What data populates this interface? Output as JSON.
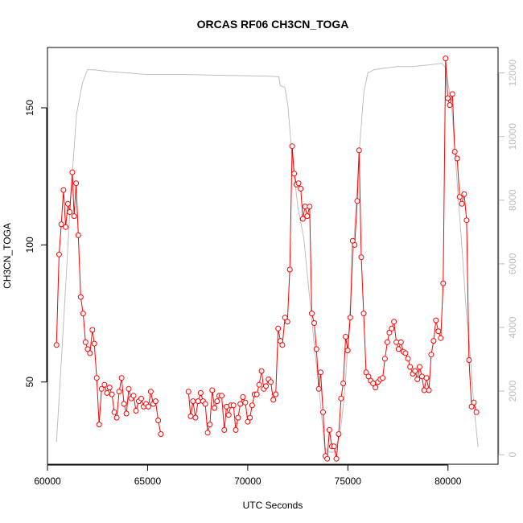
{
  "chart_data": {
    "type": "line",
    "title": "ORCAS RF06 CH3CN_TOGA",
    "xlabel": "UTC Seconds",
    "ylabel": "CH3CN_TOGA",
    "xlim": [
      60000,
      82500
    ],
    "ylim": [
      20,
      172
    ],
    "y2lim": [
      -300,
      12800
    ],
    "grid": false,
    "legend": "none",
    "x_ticks": [
      60000,
      65000,
      70000,
      75000,
      80000
    ],
    "y_ticks": [
      50,
      100,
      150
    ],
    "y2_ticks": [
      0,
      2000,
      4000,
      6000,
      8000,
      10000,
      12000
    ],
    "colors": {
      "primary": "#ff0000",
      "secondary": "#bebebe"
    },
    "series": [
      {
        "axis": "left",
        "style": "line-points",
        "color": "#ff0000",
        "segments": [
          [
            [
              60450,
              63.5
            ],
            [
              60580,
              96.5
            ],
            [
              60690,
              107.5
            ],
            [
              60800,
              120
            ],
            [
              60910,
              106.5
            ],
            [
              61020,
              115
            ],
            [
              61110,
              112
            ],
            [
              61240,
              126.5
            ],
            [
              61330,
              110.5
            ],
            [
              61430,
              122.5
            ],
            [
              61540,
              103.5
            ],
            [
              61660,
              81
            ],
            [
              61780,
              75
            ],
            [
              61900,
              64.5
            ],
            [
              62010,
              62
            ],
            [
              62120,
              60.5
            ],
            [
              62240,
              69
            ],
            [
              62340,
              64
            ],
            [
              62460,
              51.5
            ],
            [
              62580,
              34.5
            ],
            [
              62700,
              47.5
            ],
            [
              62850,
              49
            ],
            [
              62970,
              46
            ],
            [
              63100,
              48
            ],
            [
              63220,
              45.5
            ],
            [
              63340,
              39
            ],
            [
              63460,
              37
            ],
            [
              63580,
              46.5
            ],
            [
              63700,
              51.5
            ],
            [
              63820,
              42
            ],
            [
              63940,
              38.5
            ],
            [
              64060,
              47.5
            ],
            [
              64180,
              44
            ],
            [
              64300,
              45
            ],
            [
              64420,
              39.5
            ],
            [
              64560,
              43
            ],
            [
              64680,
              44
            ],
            [
              64800,
              41
            ],
            [
              64920,
              42
            ],
            [
              65040,
              41
            ],
            [
              65160,
              46.5
            ],
            [
              65280,
              42
            ],
            [
              65400,
              43
            ],
            [
              65530,
              36
            ],
            [
              65660,
              31
            ]
          ],
          [
            [
              67040,
              46.5
            ],
            [
              67150,
              37.5
            ],
            [
              67270,
              43
            ],
            [
              67390,
              37
            ],
            [
              67520,
              43
            ],
            [
              67650,
              46
            ],
            [
              67770,
              43
            ],
            [
              67880,
              42
            ],
            [
              68000,
              31.5
            ],
            [
              68110,
              34.5
            ],
            [
              68230,
              47
            ],
            [
              68340,
              40.5
            ],
            [
              68470,
              43
            ],
            [
              68580,
              45
            ],
            [
              68700,
              45
            ],
            [
              68830,
              32.5
            ],
            [
              68940,
              41
            ],
            [
              69050,
              38
            ],
            [
              69160,
              41.5
            ],
            [
              69290,
              41.5
            ],
            [
              69400,
              32.5
            ],
            [
              69520,
              37
            ],
            [
              69630,
              42
            ],
            [
              69760,
              44.5
            ],
            [
              69880,
              42.5
            ],
            [
              70000,
              35.5
            ],
            [
              70110,
              37
            ],
            [
              70220,
              41.5
            ],
            [
              70340,
              45.5
            ],
            [
              70450,
              45.5
            ],
            [
              70570,
              49
            ],
            [
              70690,
              54
            ],
            [
              70800,
              47.5
            ],
            [
              70910,
              48.5
            ],
            [
              71040,
              51
            ],
            [
              71150,
              50
            ],
            [
              71280,
              43.5
            ],
            [
              71400,
              45.5
            ],
            [
              71520,
              69.5
            ],
            [
              71630,
              65
            ],
            [
              71730,
              63.5
            ],
            [
              71860,
              73.5
            ],
            [
              71980,
              72
            ],
            [
              72100,
              91
            ],
            [
              72220,
              136
            ],
            [
              72320,
              126
            ],
            [
              72430,
              122
            ],
            [
              72540,
              122.5
            ],
            [
              72650,
              120.5
            ],
            [
              72750,
              109.5
            ],
            [
              72860,
              114
            ],
            [
              72970,
              110.5
            ],
            [
              73090,
              114
            ],
            [
              73200,
              75
            ],
            [
              73320,
              71.5
            ],
            [
              73430,
              62
            ],
            [
              73550,
              47.5
            ],
            [
              73640,
              53.5
            ],
            [
              73760,
              39
            ],
            [
              73880,
              23
            ],
            [
              73970,
              22
            ],
            [
              74080,
              32.5
            ],
            [
              74200,
              26.5
            ],
            [
              74310,
              26.5
            ],
            [
              74430,
              22
            ],
            [
              74540,
              31
            ],
            [
              74660,
              44
            ],
            [
              74770,
              49.5
            ],
            [
              74890,
              66.5
            ],
            [
              74990,
              61.5
            ],
            [
              75120,
              73.5
            ],
            [
              75240,
              101.5
            ],
            [
              75340,
              100
            ],
            [
              75470,
              116
            ],
            [
              75560,
              134.5
            ],
            [
              75670,
              95.5
            ],
            [
              75790,
              75
            ],
            [
              75910,
              53.5
            ],
            [
              76030,
              52
            ],
            [
              76140,
              50.5
            ],
            [
              76260,
              49.5
            ],
            [
              76380,
              48
            ],
            [
              76500,
              50
            ],
            [
              76620,
              51
            ],
            [
              76740,
              51.5
            ],
            [
              76850,
              58.5
            ],
            [
              76970,
              64.5
            ],
            [
              77070,
              68
            ],
            [
              77190,
              69.5
            ],
            [
              77300,
              72
            ],
            [
              77420,
              64.5
            ],
            [
              77530,
              62
            ],
            [
              77650,
              64.5
            ],
            [
              77770,
              61
            ],
            [
              77880,
              60.5
            ],
            [
              78000,
              58.5
            ],
            [
              78110,
              55.5
            ],
            [
              78240,
              53
            ],
            [
              78350,
              54
            ],
            [
              78470,
              51
            ],
            [
              78580,
              55.5
            ],
            [
              78700,
              52
            ],
            [
              78810,
              47
            ],
            [
              78930,
              51.5
            ],
            [
              79050,
              47
            ],
            [
              79160,
              60
            ],
            [
              79280,
              65
            ],
            [
              79400,
              72.5
            ],
            [
              79520,
              68.5
            ],
            [
              79640,
              66
            ],
            [
              79760,
              86
            ],
            [
              79880,
              168
            ],
            [
              79990,
              153.5
            ],
            [
              80090,
              151
            ],
            [
              80220,
              155
            ],
            [
              80340,
              134
            ],
            [
              80460,
              131.5
            ],
            [
              80580,
              117.5
            ],
            [
              80690,
              115
            ],
            [
              80810,
              118.5
            ],
            [
              80930,
              109
            ],
            [
              81050,
              58
            ],
            [
              81180,
              41
            ],
            [
              81290,
              42.5
            ],
            [
              81420,
              39
            ]
          ]
        ]
      },
      {
        "axis": "right",
        "style": "line",
        "color": "#bebebe",
        "segments": [
          [
            [
              60450,
              400
            ],
            [
              60650,
              2500
            ],
            [
              60900,
              5200
            ],
            [
              61150,
              8000
            ],
            [
              61450,
              10700
            ],
            [
              61750,
              11700
            ],
            [
              62000,
              12100
            ],
            [
              62300,
              12100
            ],
            [
              63000,
              12050
            ],
            [
              64000,
              12000
            ],
            [
              65000,
              11950
            ],
            [
              67000,
              11950
            ],
            [
              69000,
              11920
            ],
            [
              71000,
              11900
            ],
            [
              71550,
              11880
            ],
            [
              71620,
              11600
            ],
            [
              71850,
              11550
            ],
            [
              72000,
              11000
            ],
            [
              72200,
              9500
            ],
            [
              72500,
              7800
            ],
            [
              72800,
              6800
            ],
            [
              73000,
              5500
            ],
            [
              73300,
              3600
            ],
            [
              73600,
              1800
            ],
            [
              73850,
              200
            ],
            [
              74100,
              80
            ],
            [
              74300,
              80
            ],
            [
              74600,
              600
            ],
            [
              74800,
              1700
            ],
            [
              75000,
              3400
            ],
            [
              75200,
              5500
            ],
            [
              75400,
              7800
            ],
            [
              75600,
              9800
            ],
            [
              75800,
              11400
            ],
            [
              76000,
              12000
            ],
            [
              76300,
              12100
            ],
            [
              76800,
              12150
            ],
            [
              77500,
              12200
            ],
            [
              78200,
              12200
            ],
            [
              79000,
              12250
            ],
            [
              79700,
              12300
            ],
            [
              79900,
              12150
            ],
            [
              80200,
              10800
            ],
            [
              80500,
              8200
            ],
            [
              80700,
              6500
            ],
            [
              80900,
              4600
            ],
            [
              81100,
              3200
            ],
            [
              81300,
              1500
            ],
            [
              81500,
              250
            ]
          ]
        ]
      }
    ]
  }
}
